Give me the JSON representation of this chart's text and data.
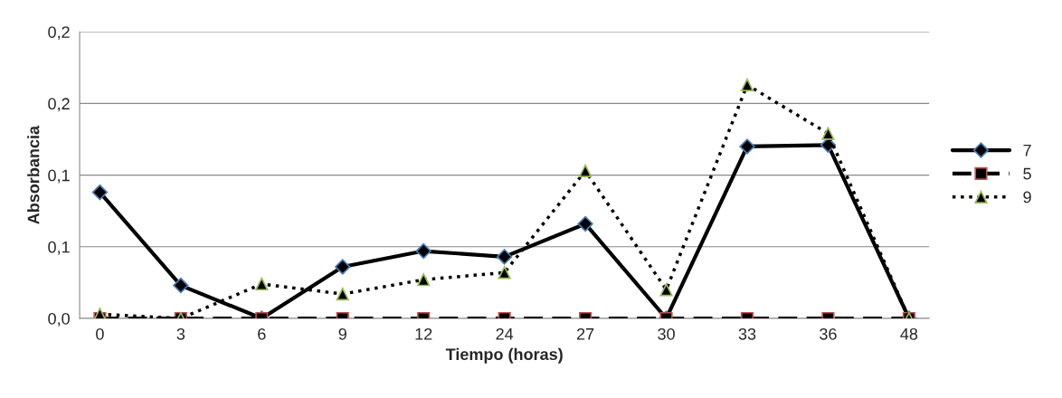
{
  "chart_data": {
    "type": "line",
    "xlabel": "Tiempo (horas)",
    "ylabel": "Absorbancia",
    "categories": [
      "0",
      "3",
      "6",
      "9",
      "12",
      "24",
      "27",
      "30",
      "33",
      "36",
      "48"
    ],
    "series": [
      {
        "name": "7",
        "color": "#000000",
        "marker": "diamond",
        "line_style": "solid",
        "values": [
          0.088,
          0.023,
          0,
          0.036,
          0.047,
          0.043,
          0.066,
          0,
          0.12,
          0.121,
          0
        ]
      },
      {
        "name": "5",
        "color": "#000000",
        "marker": "square",
        "line_style": "dashed",
        "values": [
          0,
          0,
          0,
          0,
          0,
          0,
          0,
          0,
          0,
          0,
          0
        ]
      },
      {
        "name": "9",
        "color": "#000000",
        "marker": "triangle",
        "line_style": "dotted",
        "values": [
          0.003,
          0,
          0.024,
          0.017,
          0.027,
          0.032,
          0.103,
          0.02,
          0.163,
          0.129,
          0
        ]
      }
    ],
    "ylim": [
      0,
      0.2
    ],
    "yticks": [
      {
        "value": 0,
        "label": "0,0"
      },
      {
        "value": 0.05,
        "label": "0,1"
      },
      {
        "value": 0.1,
        "label": "0,1"
      },
      {
        "value": 0.15,
        "label": "0,2"
      },
      {
        "value": 0.2,
        "label": "0,2"
      }
    ],
    "grid": "y",
    "legend": "right"
  }
}
